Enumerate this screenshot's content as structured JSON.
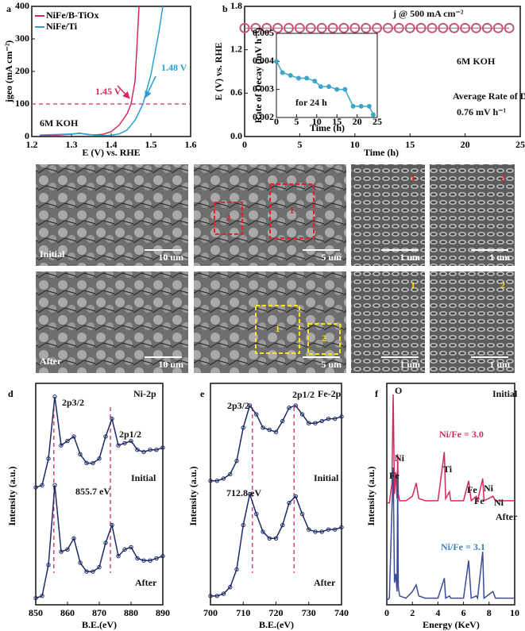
{
  "panel_labels": [
    "a",
    "b",
    "c",
    "d",
    "e",
    "f"
  ],
  "chart_data": [
    {
      "type": "line",
      "xlabel": "E (V) vs. RHE",
      "ylabel": "jgeo (mA cm⁻²)",
      "xlim": [
        1.2,
        1.6
      ],
      "ylim": [
        0,
        400
      ],
      "xticks": [
        1.2,
        1.3,
        1.4,
        1.5,
        1.6
      ],
      "yticks": [
        0,
        100,
        200,
        300,
        400
      ],
      "hline": 100,
      "legend": "upper left",
      "series": [
        {
          "name": "NiFe/B-TiOx",
          "color": "#d42a5b",
          "x": [
            1.22,
            1.26,
            1.3,
            1.32,
            1.34,
            1.36,
            1.38,
            1.4,
            1.42,
            1.44,
            1.45,
            1.46,
            1.465,
            1.47
          ],
          "values": [
            3,
            4,
            7,
            10,
            6,
            5,
            7,
            15,
            35,
            70,
            100,
            170,
            280,
            400
          ]
        },
        {
          "name": "NiFe/Ti",
          "color": "#2a9fd0",
          "x": [
            1.22,
            1.26,
            1.3,
            1.32,
            1.34,
            1.36,
            1.38,
            1.4,
            1.42,
            1.44,
            1.46,
            1.48,
            1.5,
            1.52,
            1.53
          ],
          "values": [
            5,
            6,
            8,
            10,
            7,
            4,
            3,
            4,
            8,
            20,
            50,
            100,
            190,
            320,
            400
          ]
        }
      ],
      "annotations": [
        {
          "text": "1.45 V",
          "color": "#d42a5b"
        },
        {
          "text": "1.48 V",
          "color": "#2a9fd0"
        },
        {
          "text": "6M KOH",
          "color": "#111"
        }
      ]
    },
    {
      "type": "line",
      "xlabel": "Time (h)",
      "ylabel": "E (V) vs. RHE",
      "xlim": [
        0,
        25
      ],
      "ylim": [
        0,
        1.8
      ],
      "xticks": [
        0,
        5,
        10,
        15,
        20,
        25
      ],
      "yticks": [
        {
          "value": 0,
          "label": "0.0"
        },
        0.6,
        1.2,
        1.8
      ],
      "marker": "hollow",
      "x": [
        0,
        1,
        2,
        3,
        4,
        5,
        6,
        7,
        8,
        9,
        10,
        11,
        12,
        13,
        14,
        15,
        16,
        17,
        18,
        19,
        20,
        21,
        22,
        23,
        24
      ],
      "series": [
        {
          "name": "E",
          "color": "#c2577a",
          "values": [
            1.5,
            1.5,
            1.5,
            1.5,
            1.5,
            1.5,
            1.5,
            1.5,
            1.5,
            1.5,
            1.5,
            1.5,
            1.5,
            1.5,
            1.5,
            1.5,
            1.5,
            1.5,
            1.5,
            1.5,
            1.5,
            1.5,
            1.5,
            1.5,
            1.5
          ]
        }
      ],
      "annotations": [
        {
          "text": "j @ 500 mA cm⁻²",
          "color": "#111"
        },
        {
          "text": "6M KOH",
          "color": "#111"
        },
        {
          "text": "Average Rate of Decay :",
          "color": "#111"
        },
        {
          "text": "0.76 mV h⁻¹",
          "color": "#111"
        }
      ]
    },
    {
      "type": "line",
      "inset": true,
      "xlabel": "Time (h)",
      "ylabel": "Rate of Decay (mV h⁻¹)",
      "xlim": [
        0,
        25
      ],
      "ylim": [
        0.002,
        0.005
      ],
      "xticks": [
        0,
        5,
        10,
        15,
        20,
        25
      ],
      "yticks": [
        0.002,
        0.003,
        0.004,
        0.005
      ],
      "marker": "filled",
      "x": [
        0,
        1.5,
        3.5,
        5.5,
        7.5,
        9.5,
        11,
        13,
        15,
        17,
        19,
        21,
        23,
        24
      ],
      "series": [
        {
          "name": "Rate of Decay",
          "color": "#3aa6c9",
          "values": [
            0.004,
            0.0036,
            0.0035,
            0.0034,
            0.0034,
            0.0033,
            0.0031,
            0.0031,
            0.003,
            0.003,
            0.0024,
            0.0024,
            0.0024,
            0.0021
          ]
        }
      ],
      "annotations": [
        {
          "text": "for 24 h",
          "color": "#111"
        }
      ]
    },
    {
      "type": "line",
      "xlabel": "B.E.(eV)",
      "ylabel": "Intensity (a.u.)",
      "xlim": [
        850,
        890
      ],
      "ylim": [
        0,
        10
      ],
      "xticks": [
        850,
        860,
        870,
        880,
        890
      ],
      "vlines": [
        855.7,
        873.5
      ],
      "marker": "small",
      "x": [
        850,
        852,
        854,
        856,
        858,
        860,
        862,
        864,
        866,
        868,
        870,
        872,
        874,
        876,
        878,
        880,
        882,
        884,
        886,
        888,
        890
      ],
      "series": [
        {
          "name": "Initial",
          "color": "#1d2a66",
          "values": [
            5.3,
            5.4,
            6.6,
            9.4,
            7.2,
            7.4,
            7.6,
            6.8,
            6.4,
            6.4,
            6.6,
            7.6,
            8.4,
            7.2,
            7.3,
            7.4,
            7.0,
            6.9,
            7.0,
            7.0,
            7.1
          ]
        },
        {
          "name": "After",
          "color": "#1d2a66",
          "values": [
            0.3,
            0.4,
            1.8,
            5.4,
            2.4,
            2.5,
            3.0,
            1.9,
            1.5,
            1.5,
            1.7,
            2.8,
            3.6,
            2.2,
            2.5,
            2.6,
            2.1,
            2.0,
            2.0,
            2.1,
            2.2
          ]
        }
      ],
      "annotations": [
        {
          "text": "Ni-2p",
          "color": "#111"
        },
        {
          "text": "2p3/2",
          "color": "#111"
        },
        {
          "text": "2p1/2",
          "color": "#111"
        },
        {
          "text": "Initial",
          "color": "#111"
        },
        {
          "text": "855.7 eV",
          "color": "#111"
        },
        {
          "text": "After",
          "color": "#111"
        }
      ]
    },
    {
      "type": "line",
      "xlabel": "B.E.(eV)",
      "ylabel": "Intensity (a.u.)",
      "xlim": [
        700,
        740
      ],
      "ylim": [
        0,
        10
      ],
      "xticks": [
        700,
        710,
        720,
        730,
        740
      ],
      "vlines": [
        712.8,
        725.5
      ],
      "marker": "small",
      "x": [
        700,
        702,
        704,
        706,
        708,
        710,
        712,
        714,
        716,
        718,
        720,
        722,
        724,
        726,
        728,
        730,
        732,
        734,
        736,
        738,
        740
      ],
      "series": [
        {
          "name": "Initial",
          "color": "#1d2a66",
          "values": [
            5.6,
            5.6,
            5.7,
            5.9,
            6.5,
            8.0,
            9.0,
            8.6,
            8.0,
            7.9,
            7.8,
            8.3,
            8.9,
            9.0,
            8.6,
            8.2,
            8.2,
            8.3,
            8.4,
            8.4,
            8.5
          ]
        },
        {
          "name": "After",
          "color": "#1d2a66",
          "values": [
            0.4,
            0.4,
            0.5,
            0.8,
            1.6,
            3.6,
            5.0,
            4.1,
            3.3,
            3.0,
            3.0,
            3.6,
            4.6,
            4.9,
            4.1,
            3.4,
            3.3,
            3.3,
            3.4,
            3.4,
            3.5
          ]
        }
      ],
      "annotations": [
        {
          "text": "Fe-2p",
          "color": "#111"
        },
        {
          "text": "2p3/2",
          "color": "#111"
        },
        {
          "text": "2p1/2",
          "color": "#111"
        },
        {
          "text": "Initial",
          "color": "#111"
        },
        {
          "text": "712.8 eV",
          "color": "#111"
        },
        {
          "text": "After",
          "color": "#111"
        }
      ]
    },
    {
      "type": "line",
      "xlabel": "Energy (KeV)",
      "ylabel": "Intensity (a.u.)",
      "xlim": [
        0,
        10
      ],
      "ylim": [
        0,
        10
      ],
      "xticks": [
        0,
        2,
        4,
        6,
        8,
        10
      ],
      "x": [
        0,
        0.2,
        0.4,
        0.5,
        0.6,
        0.7,
        0.8,
        0.85,
        0.9,
        1.0,
        1.5,
        2.0,
        2.3,
        2.5,
        3.0,
        4.0,
        4.5,
        4.6,
        4.9,
        5.0,
        6.0,
        6.4,
        6.6,
        7.0,
        7.1,
        7.5,
        7.6,
        8.3,
        8.5,
        10
      ],
      "series": [
        {
          "name": "Initial",
          "color": "#d42a5b",
          "values": [
            4.6,
            4.6,
            5.5,
            9.5,
            5.0,
            6.0,
            4.8,
            6.8,
            5.0,
            4.7,
            4.7,
            4.9,
            5.5,
            4.8,
            4.7,
            4.7,
            6.9,
            4.8,
            5.1,
            4.7,
            4.7,
            5.6,
            4.7,
            4.9,
            4.7,
            5.7,
            4.7,
            4.9,
            4.7,
            4.7
          ]
        },
        {
          "name": "After",
          "color": "#3b4a9a",
          "values": [
            0.2,
            0.3,
            4.3,
            6.2,
            1.0,
            1.4,
            0.6,
            5.8,
            0.8,
            0.4,
            0.3,
            0.6,
            0.9,
            0.4,
            0.3,
            0.3,
            1.2,
            0.3,
            0.4,
            0.3,
            0.3,
            2.0,
            0.3,
            0.4,
            0.3,
            2.4,
            0.3,
            0.6,
            0.3,
            0.3
          ]
        }
      ],
      "annotations": [
        {
          "text": "O",
          "color": "#111"
        },
        {
          "text": "Initial",
          "color": "#111"
        },
        {
          "text": "Ni/Fe = 3.0",
          "color": "#d42a5b"
        },
        {
          "text": "Ni",
          "color": "#111"
        },
        {
          "text": "Fe",
          "color": "#111"
        },
        {
          "text": "Ti",
          "color": "#111"
        },
        {
          "text": "Fe",
          "color": "#111"
        },
        {
          "text": "Fe",
          "color": "#111"
        },
        {
          "text": "Ni",
          "color": "#111"
        },
        {
          "text": "Ni",
          "color": "#111"
        },
        {
          "text": "After",
          "color": "#111"
        },
        {
          "text": "Ni/Fe = 3.1",
          "color": "#3b7fb0"
        }
      ]
    }
  ],
  "sem": {
    "rows": [
      {
        "label": "Initial",
        "tag_color": "#e0202a",
        "images": [
          {
            "scale": "10 um"
          },
          {
            "scale": "5 um",
            "boxes": [
              "2",
              "1"
            ]
          },
          {
            "scale": "1 um",
            "tag": "1"
          },
          {
            "scale": "1 um",
            "tag": "2"
          }
        ]
      },
      {
        "label": "After",
        "tag_color": "#f5e51b",
        "images": [
          {
            "scale": "10 um"
          },
          {
            "scale": "5 um",
            "boxes": [
              "1",
              "2"
            ]
          },
          {
            "scale": "1 um",
            "tag": "1"
          },
          {
            "scale": "1 um",
            "tag": "2"
          }
        ]
      }
    ]
  }
}
